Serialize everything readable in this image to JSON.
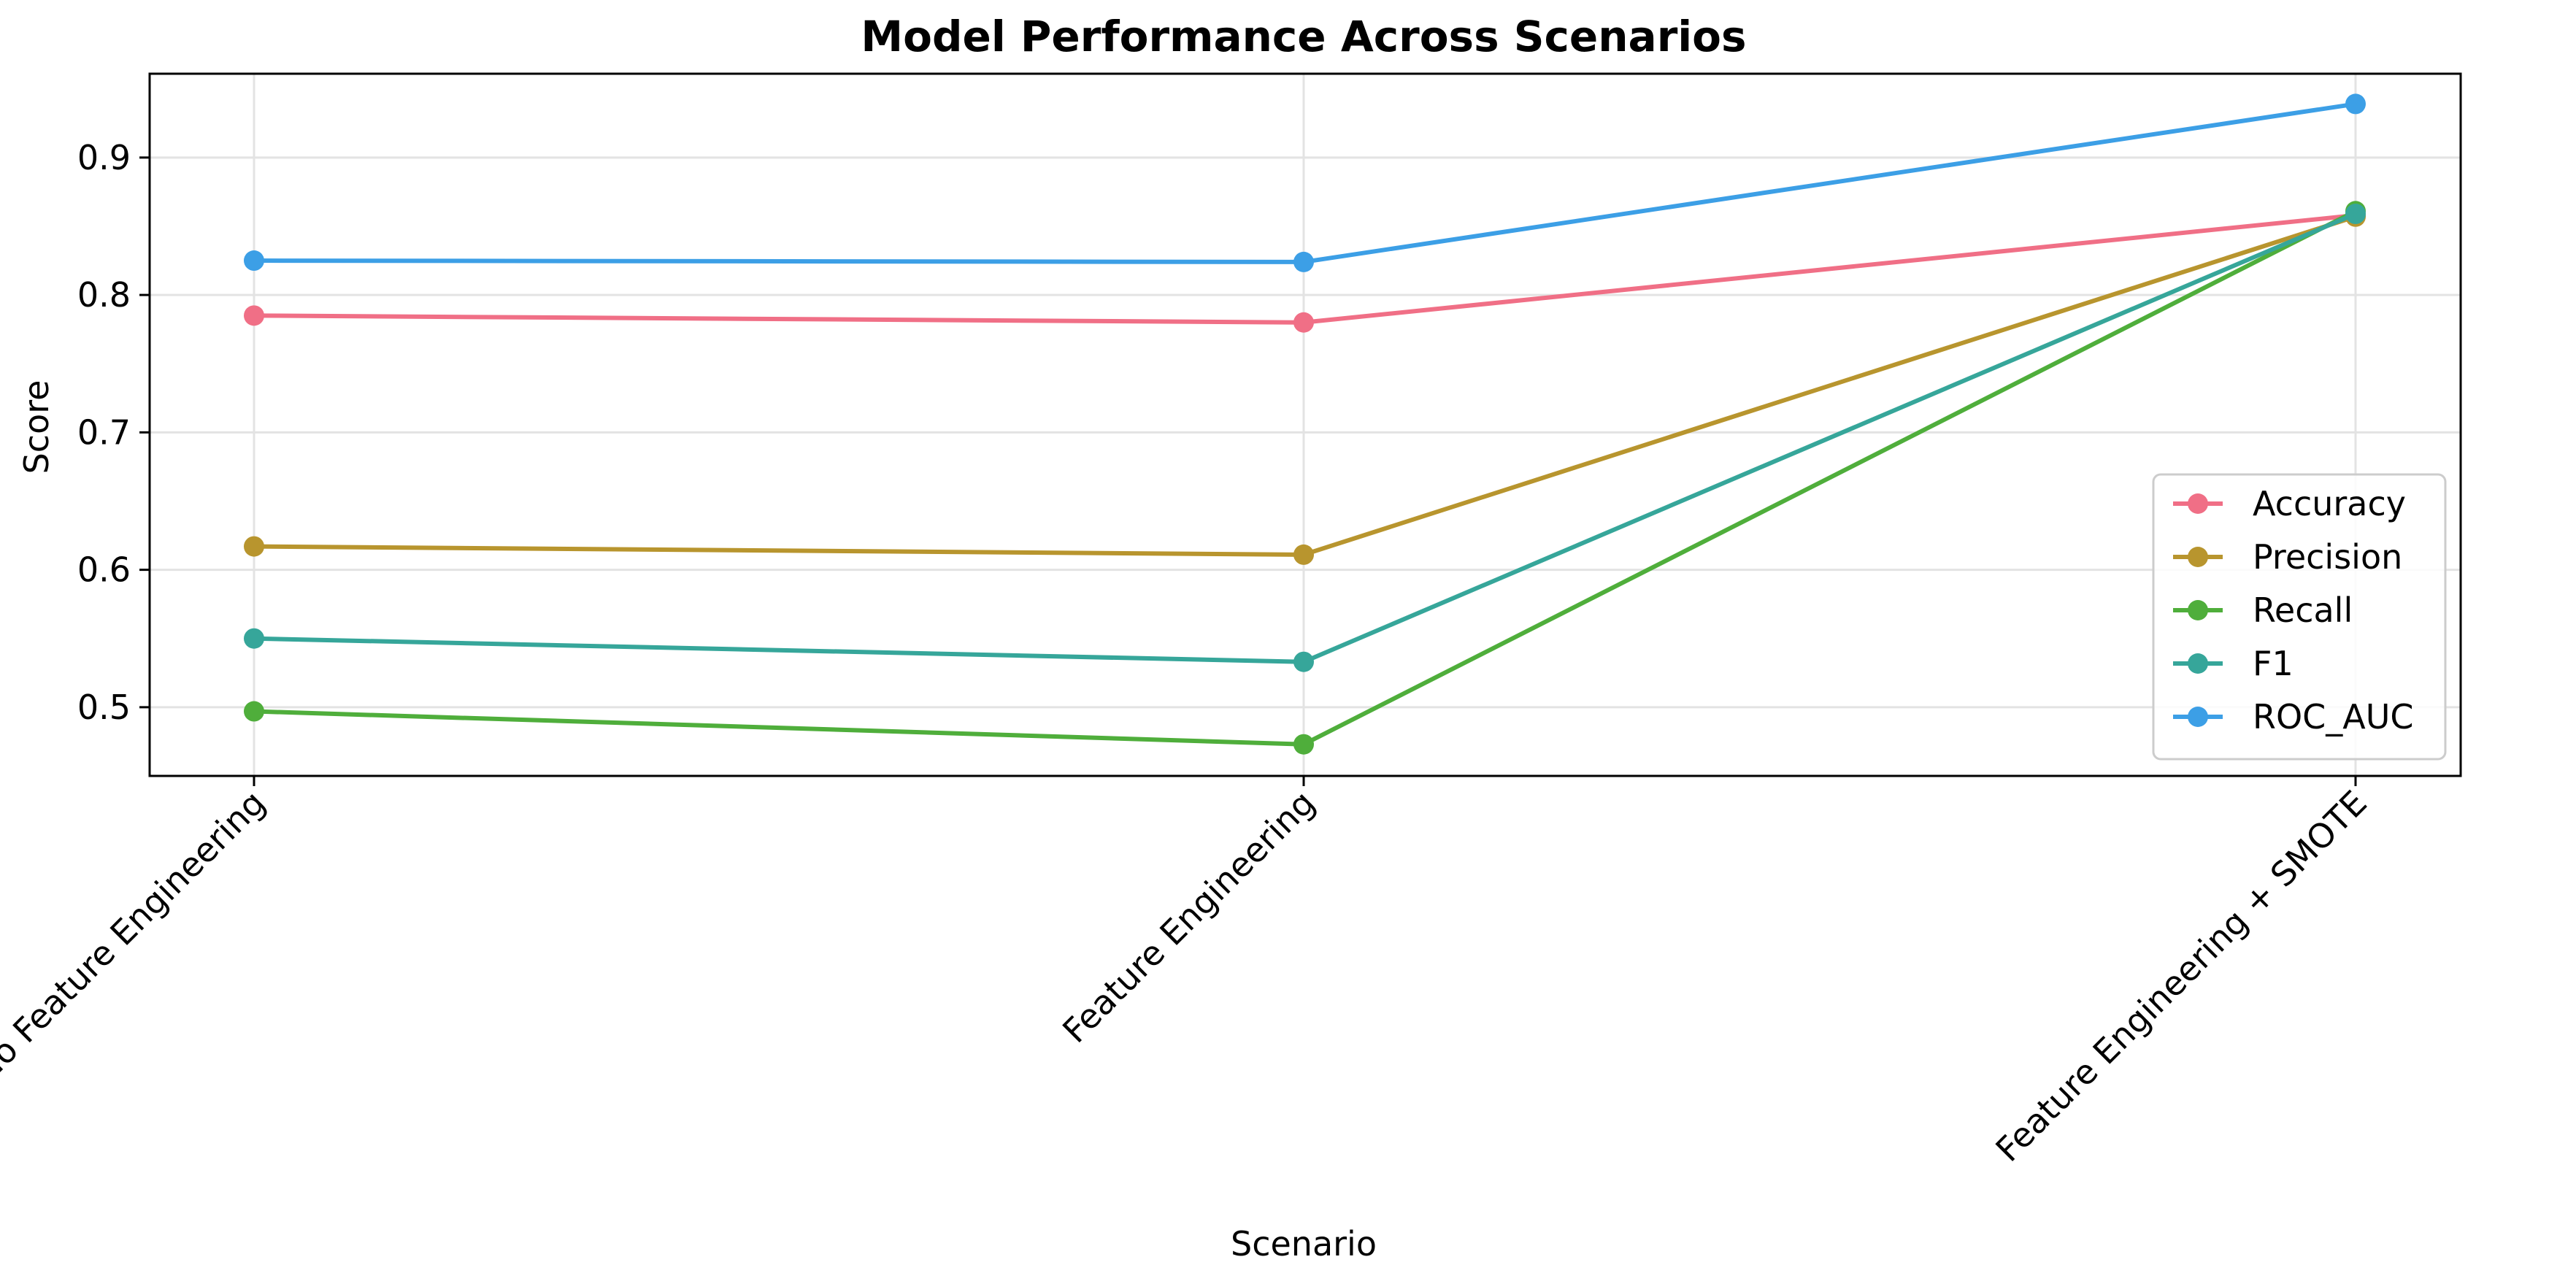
{
  "chart_data": {
    "type": "line",
    "title": "Model Performance Across Scenarios",
    "xlabel": "Scenario",
    "ylabel": "Score",
    "categories": [
      "No Feature Engineering",
      "Feature Engineering",
      "Feature Engineering + SMOTE"
    ],
    "ylim": [
      0.45,
      0.961
    ],
    "yticks": [
      "0.5",
      "0.6",
      "0.7",
      "0.8",
      "0.9"
    ],
    "grid": true,
    "legend_position": "lower right",
    "series": [
      {
        "name": "Accuracy",
        "color": "#f06f86",
        "values": [
          0.785,
          0.78,
          0.858
        ]
      },
      {
        "name": "Precision",
        "color": "#b8952e",
        "values": [
          0.617,
          0.611,
          0.857
        ]
      },
      {
        "name": "Recall",
        "color": "#4fae3b",
        "values": [
          0.497,
          0.473,
          0.861
        ]
      },
      {
        "name": "F1",
        "color": "#36a69a",
        "values": [
          0.55,
          0.533,
          0.859
        ]
      },
      {
        "name": "ROC_AUC",
        "color": "#3c9fe6",
        "values": [
          0.825,
          0.824,
          0.939
        ]
      }
    ]
  }
}
